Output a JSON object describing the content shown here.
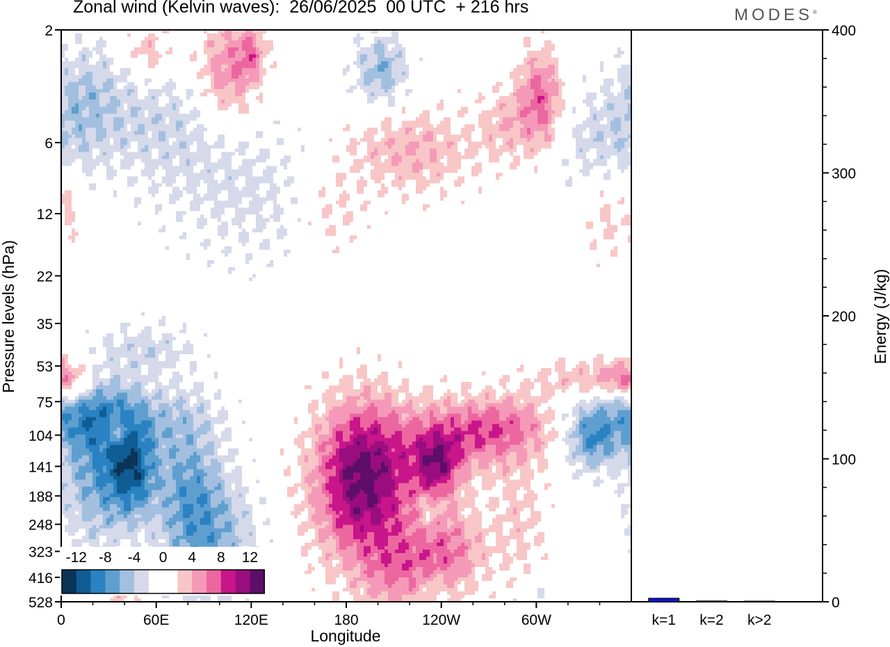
{
  "header": {
    "title": "Zonal wind (Kelvin waves):  26/06/2025  00 UTC  + 216 hrs",
    "brand": "MODES",
    "brand_mark": "®"
  },
  "chart_data": [
    {
      "type": "heatmap",
      "title": "Zonal wind (Kelvin waves):  26/06/2025  00 UTC  + 216 hrs",
      "xlabel": "Longitude",
      "ylabel": "Pressure levels (hPa)",
      "x_ticks": [
        "0",
        "60E",
        "120E",
        "180",
        "120W",
        "60W"
      ],
      "y_ticks": [
        "2",
        "6",
        "12",
        "22",
        "35",
        "53",
        "75",
        "104",
        "141",
        "188",
        "248",
        "323",
        "416",
        "528"
      ],
      "xlim_deg_east": [
        0,
        360
      ],
      "y_scale": "log pressure (top 2 hPa, bottom 528 hPa)",
      "colorbar": {
        "labels": [
          "-12",
          "-8",
          "-4",
          "0",
          "4",
          "8",
          "12"
        ],
        "colors": [
          "#0b3556",
          "#0f5d94",
          "#2a82c2",
          "#5f9fd0",
          "#a3bfdf",
          "#d5d9ea",
          "#ffffff",
          "#ffffff",
          "#f8c6c6",
          "#f49ab8",
          "#ec679f",
          "#c8158a",
          "#9a0d7f",
          "#5e0e68"
        ],
        "location": "lower-left"
      },
      "features": [
        {
          "sign": "negative",
          "lon": 45,
          "pressure_hPa": 145,
          "peak": -14
        },
        {
          "sign": "negative",
          "lon": 80,
          "pressure_hPa": 185,
          "peak": -8
        },
        {
          "sign": "positive",
          "lon": 190,
          "pressure_hPa": 150,
          "peak": 15
        },
        {
          "sign": "positive",
          "lon": 237,
          "pressure_hPa": 140,
          "peak": 11
        },
        {
          "sign": "positive",
          "lon": 280,
          "pressure_hPa": 95,
          "peak": 8
        },
        {
          "sign": "positive",
          "lon": 345,
          "pressure_hPa": 65,
          "peak": 7
        },
        {
          "sign": "negative",
          "lon": 335,
          "pressure_hPa": 110,
          "peak": -10
        },
        {
          "sign": "positive",
          "lon": 105,
          "pressure_hPa": 3,
          "peak": 11
        },
        {
          "sign": "positive",
          "lon": 303,
          "pressure_hPa": 4,
          "peak": 9
        },
        {
          "sign": "negative",
          "lon": 202,
          "pressure_hPa": 3,
          "peak": -8
        }
      ]
    },
    {
      "type": "bar",
      "categories": [
        "k=1",
        "k=2",
        "k>2"
      ],
      "values": [
        2.5,
        0.6,
        0.4
      ],
      "ylabel": "Energy (J/kg)",
      "ylim": [
        0,
        400
      ],
      "y_ticks": [
        "0",
        "100",
        "200",
        "300",
        "400"
      ],
      "bar_color": "#1010cc"
    }
  ]
}
